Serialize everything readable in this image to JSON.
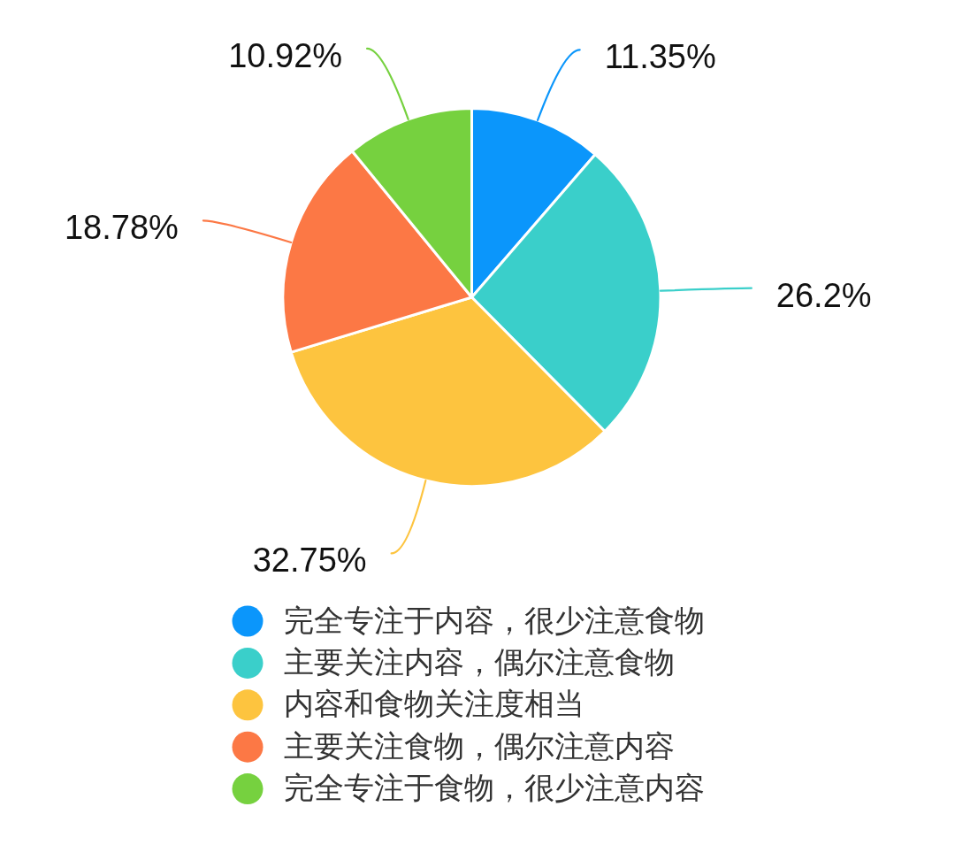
{
  "chart_data": {
    "type": "pie",
    "categories": [
      "完全专注于内容，很少注意食物",
      "主要关注内容，偶尔注意食物",
      "内容和食物关注度相当",
      "主要关注食物，偶尔注意内容",
      "完全专注于食物，很少注意内容"
    ],
    "values": [
      11.35,
      26.2,
      32.75,
      18.78,
      10.92
    ],
    "value_labels": [
      "11.35%",
      "26.2%",
      "32.75%",
      "18.78%",
      "10.92%"
    ],
    "colors": [
      "#0b96fb",
      "#3acfca",
      "#fdc43f",
      "#fc7845",
      "#76d13f"
    ],
    "legend": "bottom"
  }
}
